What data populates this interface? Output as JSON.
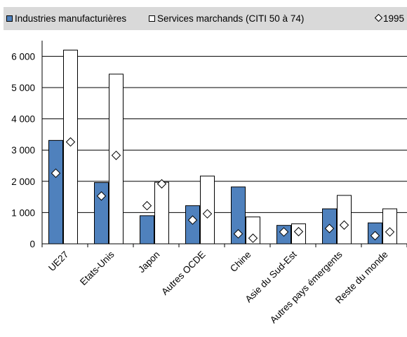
{
  "legend": {
    "items": [
      {
        "label": "Industries manufacturières",
        "marker": "filled-square"
      },
      {
        "label": "Services marchands (CITI 50 à 74)",
        "marker": "open-square"
      },
      {
        "label": "1995",
        "marker": "diamond"
      }
    ]
  },
  "colors": {
    "manufacturing": "#4f81bd",
    "services": "#ffffff",
    "outline": "#000000",
    "diamond_1995": "#ffffff",
    "grid": "#000000",
    "legend_bg": "#d9d9d9"
  },
  "chart_data": {
    "type": "bar",
    "categories": [
      "UE27",
      "Etats-Unis",
      "Japon",
      "Autres OCDE",
      "Chine",
      "Asie du Sud-Est",
      "Autres pays émergents",
      "Reste du monde"
    ],
    "series": [
      {
        "name": "Industries manufacturières",
        "values": [
          3310,
          1960,
          900,
          1220,
          1820,
          590,
          1120,
          670
        ]
      },
      {
        "name": "Services marchands (CITI 50 à 74)",
        "values": [
          6200,
          5430,
          1970,
          2170,
          860,
          640,
          1550,
          1120
        ]
      }
    ],
    "markers_1995": {
      "name": "1995",
      "manufacturing": [
        2260,
        1530,
        1220,
        760,
        320,
        380,
        490,
        260
      ],
      "services": [
        3260,
        2830,
        1920,
        960,
        180,
        390,
        600,
        380
      ]
    },
    "yticks": [
      "0",
      "1 000",
      "2 000",
      "3 000",
      "4 000",
      "5 000",
      "6 000"
    ],
    "ylim": [
      0,
      6500
    ],
    "grid": true,
    "legend_position": "top"
  }
}
